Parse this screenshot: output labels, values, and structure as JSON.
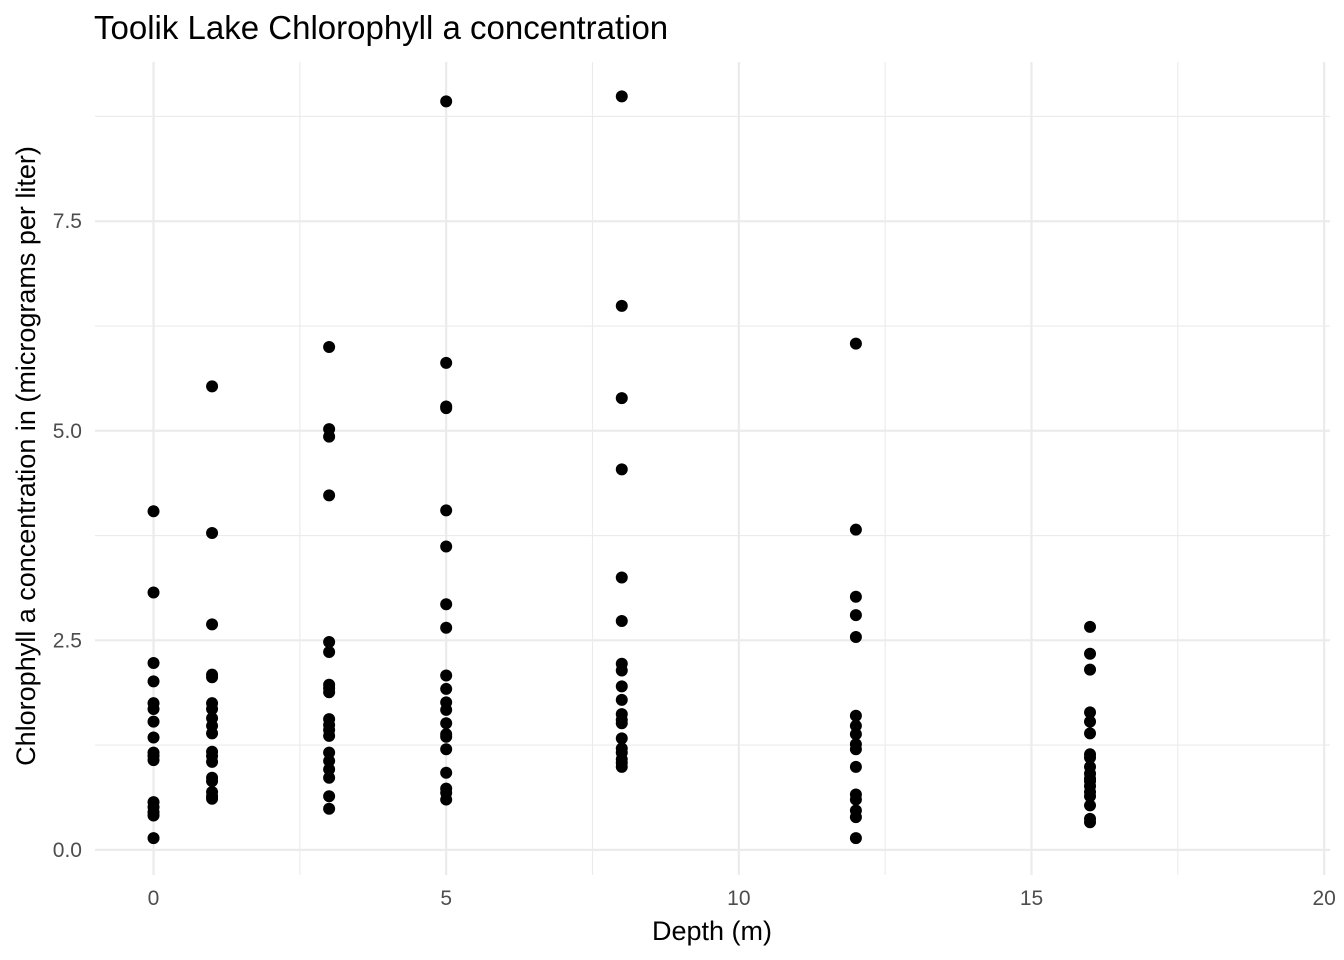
{
  "chart_data": {
    "type": "scatter",
    "title": "Toolik Lake Chlorophyll a concentration",
    "xlabel": "Depth (m)",
    "ylabel": "Chlorophyll a concentration in (micrograms per liter)",
    "xlim": [
      -1,
      20.1
    ],
    "ylim": [
      -0.3,
      9.4
    ],
    "x_ticks": [
      0,
      5,
      10,
      15,
      20
    ],
    "x_tick_labels": [
      "0",
      "5",
      "10",
      "15",
      "20"
    ],
    "y_ticks": [
      0,
      2.5,
      5,
      7.5
    ],
    "y_tick_labels": [
      "0.0",
      "2.5",
      "5.0",
      "7.5"
    ],
    "x_minor": [
      2.5,
      7.5,
      12.5,
      17.5
    ],
    "y_minor": [
      1.25,
      3.75,
      6.25,
      8.75
    ],
    "grid": true,
    "legend": "none",
    "point_color": "#000000",
    "series": [
      {
        "x": [
          0,
          0,
          0,
          0,
          0,
          0,
          0,
          0,
          0,
          0,
          0,
          0,
          0,
          0,
          0,
          0,
          1,
          1,
          1,
          1,
          1,
          1,
          1,
          1,
          1,
          1,
          1,
          1,
          1,
          1,
          1,
          1,
          1,
          1,
          3,
          3,
          3,
          3,
          3,
          3,
          3,
          3,
          3,
          3,
          3,
          3,
          3,
          3,
          3,
          3,
          3,
          3,
          3,
          5,
          5,
          5,
          5,
          5,
          5,
          5,
          5,
          5,
          5,
          5,
          5,
          5,
          5,
          5,
          5,
          5,
          5,
          5,
          5,
          8,
          8,
          8,
          8,
          8,
          8,
          8,
          8,
          8,
          8,
          8,
          8,
          8,
          8,
          8,
          8,
          8,
          8,
          8,
          12,
          12,
          12,
          12,
          12,
          12,
          12,
          12,
          12,
          12,
          12,
          12,
          12,
          12,
          12,
          12,
          16,
          16,
          16,
          16,
          16,
          16,
          16,
          16,
          16,
          16,
          16,
          16,
          16,
          16,
          16,
          16,
          16,
          16
        ],
        "y": [
          4.04,
          3.07,
          2.23,
          2.01,
          1.75,
          1.68,
          1.53,
          1.34,
          1.16,
          1.12,
          1.07,
          0.57,
          0.51,
          0.45,
          0.41,
          0.14,
          5.53,
          3.78,
          2.69,
          2.09,
          2.06,
          1.75,
          1.68,
          1.57,
          1.48,
          1.39,
          1.17,
          1.12,
          1.05,
          0.86,
          0.82,
          0.69,
          0.64,
          0.61,
          6.0,
          5.02,
          4.93,
          4.23,
          2.48,
          2.36,
          1.97,
          1.93,
          1.88,
          1.56,
          1.49,
          1.43,
          1.36,
          1.16,
          1.06,
          0.96,
          0.86,
          0.64,
          0.49,
          8.93,
          5.81,
          5.29,
          5.27,
          4.05,
          3.62,
          2.93,
          2.65,
          2.08,
          1.92,
          1.76,
          1.67,
          1.51,
          1.38,
          1.35,
          1.2,
          0.92,
          0.73,
          0.68,
          0.6,
          8.99,
          6.49,
          5.39,
          4.54,
          3.25,
          2.73,
          2.22,
          2.14,
          1.95,
          1.79,
          1.62,
          1.55,
          1.51,
          1.33,
          1.21,
          1.16,
          1.08,
          1.04,
          0.99,
          6.04,
          3.82,
          3.02,
          2.8,
          2.54,
          1.6,
          1.48,
          1.38,
          1.26,
          1.2,
          0.99,
          0.66,
          0.6,
          0.47,
          0.39,
          0.14,
          2.66,
          2.34,
          2.15,
          1.64,
          1.53,
          1.39,
          1.14,
          1.1,
          0.99,
          0.91,
          0.85,
          0.82,
          0.76,
          0.69,
          0.64,
          0.53,
          0.37,
          0.33
        ]
      }
    ]
  }
}
